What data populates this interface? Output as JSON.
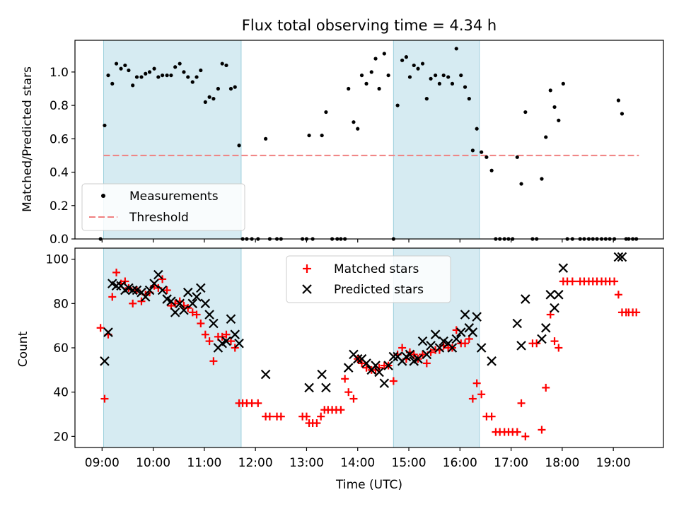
{
  "chart_data": [
    {
      "type": "scatter",
      "title": "Flux total observing time = 4.34 h",
      "xlabel": "",
      "ylabel": "Matched/Predicted stars",
      "xlim": [
        8.47,
        19.98
      ],
      "ylim": [
        0,
        1.19
      ],
      "yticks": [
        0.0,
        0.2,
        0.4,
        0.6,
        0.8,
        1.0
      ],
      "ytick_labels": [
        "0.0",
        "0.2",
        "0.4",
        "0.6",
        "0.8",
        "1.0"
      ],
      "xticks": [
        9,
        10,
        11,
        12,
        13,
        14,
        15,
        16,
        17,
        18,
        19
      ],
      "shaded_intervals": [
        [
          9.03,
          11.72
        ],
        [
          14.7,
          16.38
        ]
      ],
      "threshold": {
        "value": 0.5,
        "x_range": [
          9.03,
          19.5
        ],
        "color": "#f08080"
      },
      "legend": {
        "position": "lower-left",
        "entries": [
          "Measurements",
          "Threshold"
        ]
      },
      "series": [
        {
          "name": "Measurements",
          "color": "#000000",
          "x": [
            8.97,
            9.05,
            9.12,
            9.2,
            9.28,
            9.37,
            9.45,
            9.52,
            9.6,
            9.68,
            9.77,
            9.85,
            9.93,
            10.02,
            10.1,
            10.18,
            10.27,
            10.35,
            10.43,
            10.52,
            10.6,
            10.68,
            10.77,
            10.85,
            10.93,
            11.02,
            11.1,
            11.18,
            11.27,
            11.35,
            11.43,
            11.52,
            11.6,
            11.68,
            11.75,
            11.83,
            11.93,
            12.05,
            12.2,
            12.28,
            12.42,
            12.5,
            12.92,
            13.0,
            13.05,
            13.12,
            13.3,
            13.38,
            13.5,
            13.6,
            13.67,
            13.75,
            13.82,
            13.92,
            14.0,
            14.08,
            14.17,
            14.27,
            14.35,
            14.42,
            14.52,
            14.6,
            14.7,
            14.78,
            14.87,
            14.95,
            15.02,
            15.1,
            15.18,
            15.27,
            15.35,
            15.43,
            15.52,
            15.6,
            15.68,
            15.77,
            15.85,
            15.93,
            16.02,
            16.1,
            16.18,
            16.25,
            16.33,
            16.42,
            16.52,
            16.62,
            16.7,
            16.78,
            16.87,
            16.95,
            17.03,
            17.12,
            17.2,
            17.28,
            17.42,
            17.5,
            17.6,
            17.68,
            17.77,
            17.85,
            17.93,
            18.02,
            18.1,
            18.2,
            18.35,
            18.43,
            18.52,
            18.6,
            18.68,
            18.77,
            18.85,
            18.93,
            19.02,
            19.1,
            19.17,
            19.25,
            19.3,
            19.38,
            19.45
          ],
          "values": [
            0.0,
            0.68,
            0.98,
            0.93,
            1.05,
            1.02,
            1.04,
            1.01,
            0.92,
            0.97,
            0.97,
            0.99,
            1.0,
            1.02,
            0.97,
            0.98,
            0.98,
            0.98,
            1.03,
            1.05,
            1.0,
            0.97,
            0.94,
            0.97,
            1.01,
            0.82,
            0.85,
            0.84,
            0.9,
            1.05,
            1.04,
            0.9,
            0.91,
            0.56,
            0.0,
            0.0,
            0.0,
            0.0,
            0.6,
            0.0,
            0.0,
            0.0,
            0.0,
            0.0,
            0.62,
            0.0,
            0.62,
            0.76,
            0.0,
            0.0,
            0.0,
            0.0,
            0.9,
            0.7,
            0.66,
            0.98,
            0.93,
            1.0,
            1.08,
            0.9,
            1.11,
            0.98,
            0.0,
            0.8,
            1.07,
            1.09,
            0.97,
            1.04,
            1.02,
            1.05,
            0.84,
            0.96,
            0.98,
            0.93,
            0.98,
            0.97,
            0.93,
            1.14,
            0.98,
            0.91,
            0.84,
            0.53,
            0.66,
            0.52,
            0.49,
            0.41,
            0.0,
            0.0,
            0.0,
            0.0,
            0.0,
            0.49,
            0.33,
            0.76,
            0.0,
            0.0,
            0.36,
            0.61,
            0.89,
            0.79,
            0.71,
            0.93,
            0.0,
            0.0,
            0.0,
            0.0,
            0.0,
            0.0,
            0.0,
            0.0,
            0.0,
            0.0,
            0.0,
            0.83,
            0.75,
            0.0,
            0.0,
            0.0,
            0.0
          ]
        }
      ]
    },
    {
      "type": "scatter",
      "title": "",
      "xlabel": "Time (UTC)",
      "ylabel": "Count",
      "xlim": [
        8.47,
        19.98
      ],
      "ylim": [
        15,
        105
      ],
      "yticks": [
        20,
        40,
        60,
        80,
        100
      ],
      "ytick_labels": [
        "20",
        "40",
        "60",
        "80",
        "100"
      ],
      "xticks": [
        9,
        10,
        11,
        12,
        13,
        14,
        15,
        16,
        17,
        18,
        19
      ],
      "xtick_labels": [
        "09:00",
        "10:00",
        "11:00",
        "12:00",
        "13:00",
        "14:00",
        "15:00",
        "16:00",
        "17:00",
        "18:00",
        "19:00"
      ],
      "shaded_intervals": [
        [
          9.03,
          11.72
        ],
        [
          14.7,
          16.38
        ]
      ],
      "legend": {
        "position": "upper-center",
        "entries": [
          "Matched stars",
          "Predicted stars"
        ]
      },
      "series": [
        {
          "name": "Matched stars",
          "marker": "plus",
          "color": "#ff0000",
          "x": [
            8.97,
            9.05,
            9.12,
            9.2,
            9.28,
            9.37,
            9.45,
            9.52,
            9.6,
            9.68,
            9.77,
            9.85,
            9.93,
            10.02,
            10.1,
            10.18,
            10.27,
            10.35,
            10.43,
            10.52,
            10.6,
            10.68,
            10.77,
            10.85,
            10.93,
            11.02,
            11.1,
            11.18,
            11.27,
            11.35,
            11.43,
            11.52,
            11.6,
            11.68,
            11.75,
            11.83,
            11.93,
            12.05,
            12.2,
            12.28,
            12.42,
            12.5,
            12.92,
            13.0,
            13.05,
            13.12,
            13.2,
            13.28,
            13.35,
            13.42,
            13.5,
            13.58,
            13.67,
            13.75,
            13.82,
            13.92,
            14.0,
            14.08,
            14.17,
            14.27,
            14.35,
            14.42,
            14.52,
            14.6,
            14.7,
            14.78,
            14.87,
            14.95,
            15.02,
            15.1,
            15.18,
            15.27,
            15.35,
            15.43,
            15.52,
            15.6,
            15.68,
            15.77,
            15.85,
            15.93,
            16.02,
            16.1,
            16.18,
            16.25,
            16.33,
            16.42,
            16.52,
            16.62,
            16.7,
            16.78,
            16.87,
            16.95,
            17.03,
            17.12,
            17.2,
            17.28,
            17.42,
            17.5,
            17.6,
            17.68,
            17.77,
            17.85,
            17.93,
            18.02,
            18.1,
            18.2,
            18.35,
            18.43,
            18.52,
            18.6,
            18.68,
            18.77,
            18.85,
            18.93,
            19.02,
            19.1,
            19.17,
            19.25,
            19.3,
            19.38,
            19.45
          ],
          "values": [
            69,
            37,
            66,
            83,
            94,
            89,
            90,
            87,
            80,
            86,
            81,
            84,
            85,
            88,
            87,
            91,
            86,
            79,
            80,
            81,
            79,
            78,
            76,
            75,
            71,
            66,
            63,
            54,
            65,
            65,
            66,
            63,
            60,
            35,
            35,
            35,
            35,
            35,
            29,
            29,
            29,
            29,
            29,
            29,
            26,
            26,
            26,
            29,
            32,
            32,
            32,
            32,
            32,
            46,
            40,
            37,
            55,
            53,
            51,
            50,
            50,
            51,
            52,
            52,
            45,
            57,
            60,
            55,
            58,
            57,
            55,
            57,
            53,
            58,
            59,
            59,
            61,
            60,
            60,
            68,
            62,
            62,
            64,
            37,
            44,
            39,
            29,
            29,
            22,
            22,
            22,
            22,
            22,
            22,
            35,
            20,
            62,
            62,
            23,
            42,
            75,
            63,
            60,
            90,
            90,
            90,
            90,
            90,
            90,
            90,
            90,
            90,
            90,
            90,
            90,
            84,
            76,
            76,
            76,
            76,
            76
          ]
        },
        {
          "name": "Predicted stars",
          "marker": "x",
          "color": "#000000",
          "x": [
            9.05,
            9.12,
            9.2,
            9.28,
            9.37,
            9.45,
            9.52,
            9.6,
            9.68,
            9.77,
            9.85,
            9.93,
            10.02,
            10.1,
            10.18,
            10.27,
            10.35,
            10.43,
            10.52,
            10.6,
            10.68,
            10.77,
            10.85,
            10.93,
            11.02,
            11.1,
            11.18,
            11.27,
            11.35,
            11.43,
            11.52,
            11.6,
            11.68,
            12.2,
            13.05,
            13.3,
            13.38,
            13.82,
            13.92,
            14.0,
            14.08,
            14.17,
            14.27,
            14.35,
            14.42,
            14.52,
            14.6,
            14.7,
            14.78,
            14.87,
            14.95,
            15.02,
            15.1,
            15.18,
            15.27,
            15.35,
            15.43,
            15.52,
            15.6,
            15.68,
            15.77,
            15.85,
            15.93,
            16.02,
            16.1,
            16.18,
            16.25,
            16.33,
            16.42,
            16.62,
            17.12,
            17.2,
            17.28,
            17.6,
            17.68,
            17.77,
            17.85,
            17.93,
            18.02,
            19.1,
            19.17
          ],
          "values": [
            54,
            67,
            89,
            88,
            88,
            86,
            87,
            86,
            86,
            85,
            83,
            86,
            89,
            93,
            86,
            82,
            81,
            76,
            80,
            77,
            85,
            80,
            83,
            87,
            80,
            75,
            71,
            60,
            62,
            63,
            73,
            66,
            62,
            48,
            42,
            48,
            42,
            51,
            57,
            55,
            55,
            53,
            50,
            52,
            49,
            44,
            52,
            56,
            56,
            54,
            56,
            57,
            54,
            55,
            63,
            57,
            61,
            66,
            60,
            63,
            62,
            60,
            64,
            67,
            75,
            69,
            67,
            74,
            60,
            54,
            71,
            61,
            82,
            64,
            69,
            84,
            78,
            84,
            96,
            101,
            101
          ]
        }
      ]
    }
  ]
}
